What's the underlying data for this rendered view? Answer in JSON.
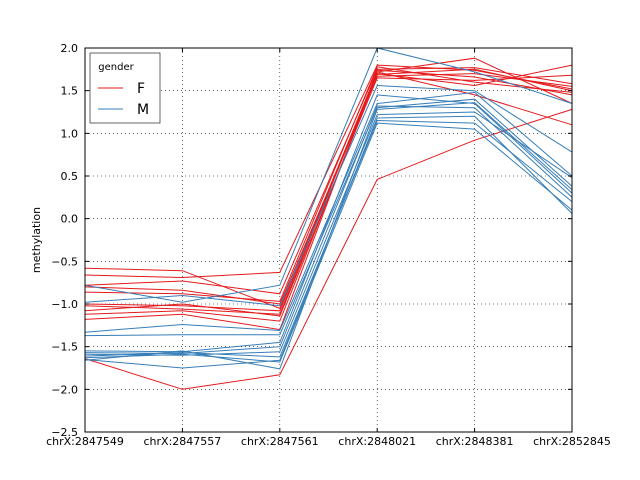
{
  "chart_data": {
    "type": "line",
    "ylabel": "methylation",
    "categories": [
      "chrX:2847549",
      "chrX:2847557",
      "chrX:2847561",
      "chrX:2848021",
      "chrX:2848381",
      "chrX:2852845"
    ],
    "ylim": [
      -2.5,
      2.0
    ],
    "yticks": [
      "−2.5",
      "−2.0",
      "−1.5",
      "−1.0",
      "−0.5",
      "0.0",
      "0.5",
      "1.0",
      "1.5",
      "2.0"
    ],
    "grid": true,
    "legend": {
      "title": "gender",
      "placement": "top-left",
      "entries": [
        {
          "label": "F",
          "color": "#e41a1c"
        },
        {
          "label": "M",
          "color": "#377eb8"
        }
      ]
    },
    "series": [
      {
        "group": "F",
        "color": "#e41a1c",
        "values": [
          -0.58,
          -0.61,
          -1.05,
          1.72,
          1.88,
          1.35
        ]
      },
      {
        "group": "F",
        "color": "#e41a1c",
        "values": [
          -0.66,
          -0.69,
          -0.63,
          1.8,
          1.74,
          1.52
        ]
      },
      {
        "group": "F",
        "color": "#e41a1c",
        "values": [
          -0.78,
          -0.73,
          -0.88,
          1.75,
          1.77,
          1.58
        ]
      },
      {
        "group": "F",
        "color": "#e41a1c",
        "values": [
          -0.8,
          -0.84,
          -1.0,
          1.67,
          1.7,
          1.55
        ]
      },
      {
        "group": "F",
        "color": "#e41a1c",
        "values": [
          -0.86,
          -0.88,
          -0.97,
          1.78,
          1.6,
          1.48
        ]
      },
      {
        "group": "F",
        "color": "#e41a1c",
        "values": [
          -1.0,
          -1.02,
          -1.08,
          1.7,
          1.56,
          1.8
        ]
      },
      {
        "group": "F",
        "color": "#e41a1c",
        "values": [
          -1.02,
          -1.06,
          -1.12,
          1.72,
          1.45,
          1.1
        ]
      },
      {
        "group": "F",
        "color": "#e41a1c",
        "values": [
          -1.08,
          -1.0,
          -1.14,
          1.65,
          1.62,
          1.68
        ]
      },
      {
        "group": "F",
        "color": "#e41a1c",
        "values": [
          -1.12,
          -1.08,
          -1.2,
          1.69,
          1.75,
          1.5
        ]
      },
      {
        "group": "F",
        "color": "#e41a1c",
        "values": [
          -1.18,
          -1.12,
          -1.3,
          1.74,
          1.66,
          1.45
        ]
      },
      {
        "group": "F",
        "color": "#e41a1c",
        "values": [
          -1.64,
          -2.0,
          -1.83,
          0.46,
          0.92,
          1.28
        ]
      },
      {
        "group": "M",
        "color": "#377eb8",
        "values": [
          -0.78,
          -0.98,
          -0.78,
          2.0,
          1.72,
          1.35
        ]
      },
      {
        "group": "M",
        "color": "#377eb8",
        "values": [
          -0.98,
          -0.9,
          -1.02,
          1.56,
          1.5,
          0.78
        ]
      },
      {
        "group": "M",
        "color": "#377eb8",
        "values": [
          -1.33,
          -1.24,
          -1.31,
          1.35,
          1.48,
          0.5
        ]
      },
      {
        "group": "M",
        "color": "#377eb8",
        "values": [
          -1.37,
          -1.36,
          -1.36,
          1.3,
          1.4,
          0.38
        ]
      },
      {
        "group": "M",
        "color": "#377eb8",
        "values": [
          -1.55,
          -1.56,
          -1.45,
          1.45,
          1.35,
          0.3
        ]
      },
      {
        "group": "M",
        "color": "#377eb8",
        "values": [
          -1.57,
          -1.58,
          -1.5,
          1.32,
          1.3,
          0.25
        ]
      },
      {
        "group": "M",
        "color": "#377eb8",
        "values": [
          -1.59,
          -1.6,
          -1.56,
          1.22,
          1.25,
          0.48
        ]
      },
      {
        "group": "M",
        "color": "#377eb8",
        "values": [
          -1.61,
          -1.57,
          -1.62,
          1.15,
          1.12,
          0.2
        ]
      },
      {
        "group": "M",
        "color": "#377eb8",
        "values": [
          -1.63,
          -1.59,
          -1.68,
          1.12,
          1.05,
          0.1
        ]
      },
      {
        "group": "M",
        "color": "#377eb8",
        "values": [
          -1.65,
          -1.75,
          -1.66,
          1.18,
          1.2,
          0.06
        ]
      },
      {
        "group": "M",
        "color": "#377eb8",
        "values": [
          -1.66,
          -1.55,
          -1.76,
          1.28,
          1.36,
          0.34
        ]
      }
    ]
  }
}
